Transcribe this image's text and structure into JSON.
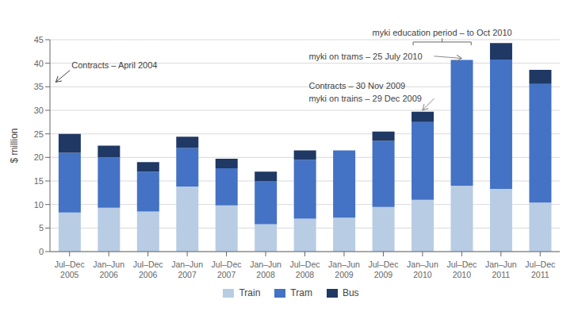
{
  "chart_data": {
    "type": "bar",
    "stacked": true,
    "categories": [
      "Jul–Dec\n2005",
      "Jan–Jun\n2006",
      "Jul–Dec\n2006",
      "Jan–Jun\n2007",
      "Jul–Dec\n2007",
      "Jan–Jun\n2008",
      "Jul–Dec\n2008",
      "Jan–Jun\n2009",
      "Jul–Dec\n2009",
      "Jan–Jun\n2010",
      "Jul–Dec\n2010",
      "Jan–Jun\n2011",
      "Jul–Dec\n2011"
    ],
    "series": [
      {
        "name": "Train",
        "color": "#b8cce4",
        "values": [
          8.3,
          9.3,
          8.5,
          13.8,
          9.8,
          5.8,
          7.0,
          7.2,
          9.5,
          11.0,
          14.0,
          13.3,
          10.4
        ]
      },
      {
        "name": "Tram",
        "color": "#4472c4",
        "values": [
          12.7,
          10.7,
          8.5,
          8.2,
          7.9,
          9.2,
          12.5,
          14.3,
          14.0,
          16.5,
          26.7,
          27.5,
          25.2
        ]
      },
      {
        "name": "Bus",
        "color": "#1f3864",
        "values": [
          4.0,
          2.5,
          2.0,
          2.4,
          2.0,
          2.0,
          2.0,
          0.0,
          2.0,
          2.2,
          0.0,
          3.5,
          3.0
        ]
      }
    ],
    "ylabel": "$ million",
    "ylim": [
      0,
      45
    ],
    "yticks": [
      0,
      5,
      10,
      15,
      20,
      25,
      30,
      35,
      40,
      45
    ],
    "grid": true,
    "legend": "bottom",
    "annotations": [
      {
        "text": "Contracts – April 2004"
      },
      {
        "text": "Contracts – 30 Nov 2009"
      },
      {
        "text": "myki on trains – 29 Dec 2009",
        "x": "Jan–Jun\n2010"
      },
      {
        "text": "myki on trams – 25 July 2010",
        "x": "Jul–Dec\n2010"
      },
      {
        "text": "myki education period – to Oct 2010",
        "x": [
          "Jan–Jun\n2010",
          "Jul–Dec\n2010"
        ]
      }
    ]
  }
}
